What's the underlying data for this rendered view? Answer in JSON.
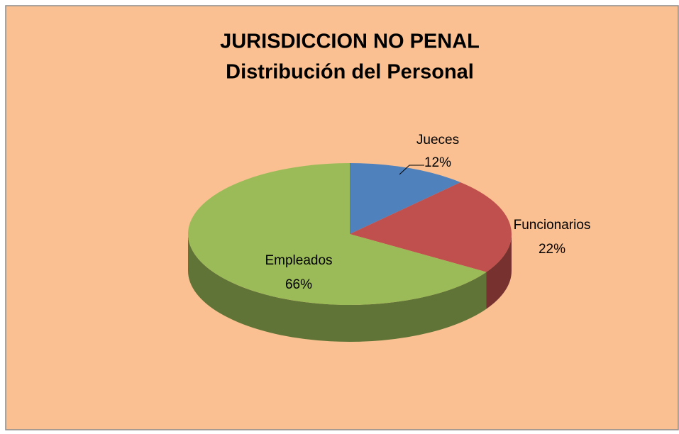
{
  "chart_data": {
    "type": "pie",
    "title": "JURISDICCION NO PENAL",
    "subtitle": "Distribución del Personal",
    "categories": [
      "Jueces",
      "Funcionarios",
      "Empleados"
    ],
    "values": [
      12,
      22,
      66
    ],
    "value_labels": [
      "12%",
      "22%",
      "66%"
    ],
    "colors": [
      "#4f81bd",
      "#c0504d",
      "#9bbb59"
    ],
    "legend": false
  }
}
